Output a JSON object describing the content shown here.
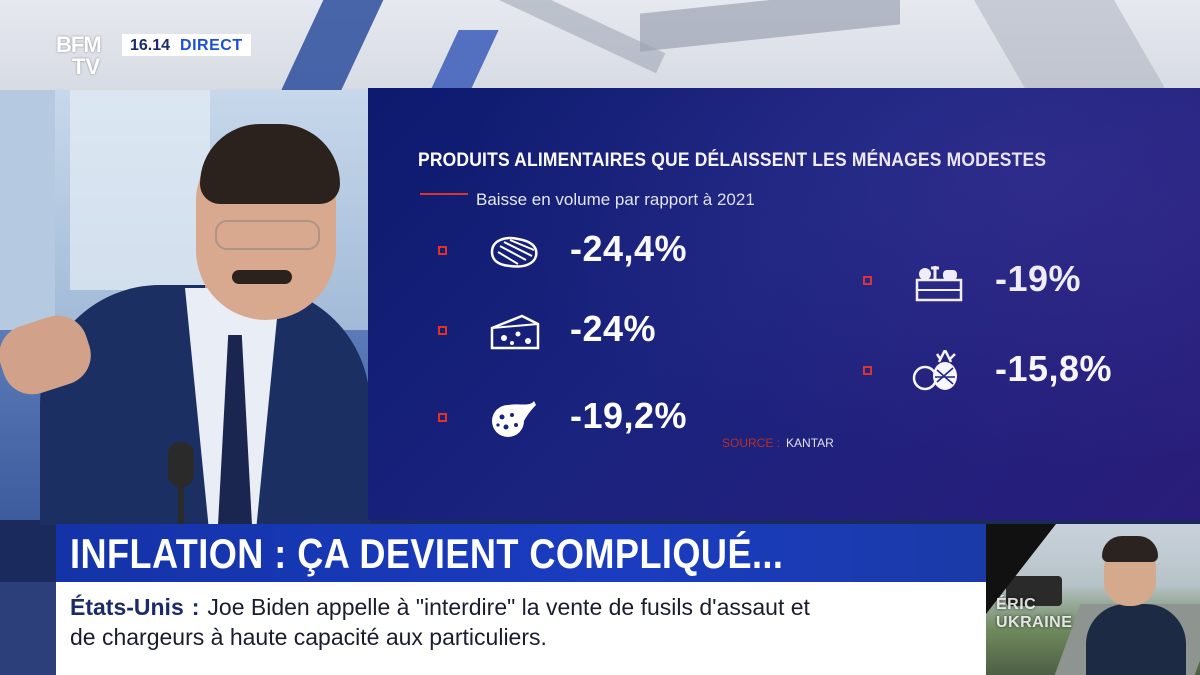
{
  "channel": {
    "logo_top": "BFM",
    "logo_bottom": "TV",
    "time": "16.14",
    "live_label": "DIRECT"
  },
  "infographic": {
    "title": "PRODUITS ALIMENTAIRES QUE DÉLAISSENT LES MÉNAGES MODESTES",
    "subtitle": "Baisse en volume par rapport à 2021",
    "items": [
      {
        "icon": "steak-icon",
        "value": "-24,4%"
      },
      {
        "icon": "cheese-icon",
        "value": "-24%"
      },
      {
        "icon": "sausage-icon",
        "value": "-19,2%"
      },
      {
        "icon": "vegetable-crate-icon",
        "value": "-19%"
      },
      {
        "icon": "fruits-icon",
        "value": "-15,8%"
      }
    ],
    "source_label": "SOURCE :",
    "source_value": "KANTAR",
    "accent_color": "#e0312a",
    "background_color": "#1a237e"
  },
  "headline": {
    "text": "INFLATION : ÇA DEVIENT COMPLIQUÉ..."
  },
  "ticker": {
    "category": "États-Unis",
    "separator": ":",
    "line1": "Joe Biden appelle à \"interdire\" la vente de fusils d'assaut et",
    "line2": "de chargeurs à haute capacité aux particuliers."
  },
  "side_video": {
    "overlay_line1": "ÉRIC",
    "overlay_line2": "UKRAINE"
  }
}
